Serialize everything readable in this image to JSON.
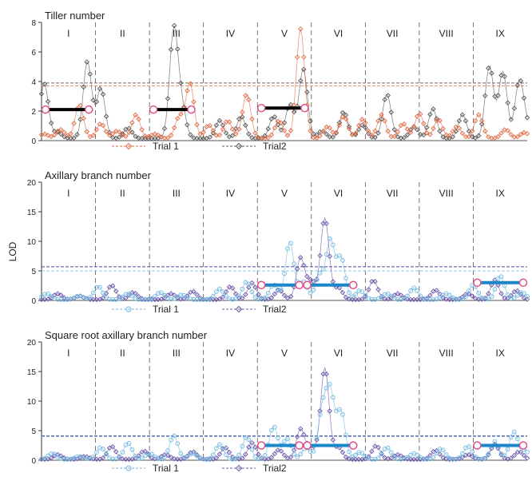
{
  "figure": {
    "ylabel": "LOD",
    "panels": [
      {
        "title": "Tiller number",
        "colors": {
          "trial1": "#e06a45",
          "trial2": "#555555",
          "threshold1": "#e8906e",
          "threshold2": "#8a6a55",
          "ci": "#000000"
        },
        "legend": [
          "Trial 1",
          "Trial2"
        ]
      },
      {
        "title": "Axillary branch number",
        "colors": {
          "trial1": "#6fb6e0",
          "trial2": "#6a55a8",
          "threshold1": "#8cc8ea",
          "threshold2": "#4a4aa0",
          "ci": "#1b86c8"
        },
        "legend": [
          "Trial 1",
          "Trial2"
        ]
      },
      {
        "title": "Square root axillary branch number",
        "colors": {
          "trial1": "#6fb6e0",
          "trial2": "#6a55a8",
          "threshold1": "#8cc8ea",
          "threshold2": "#4a4aa0",
          "ci": "#1b86c8"
        },
        "legend": [
          "Trial 1",
          "Trial2"
        ]
      }
    ]
  },
  "chart_data": [
    {
      "type": "line",
      "title": "Tiller number",
      "ylabel": "LOD",
      "ylim": [
        0,
        8
      ],
      "yticks": [
        "0",
        "2",
        "4",
        "6",
        "8"
      ],
      "chromosomes": [
        "I",
        "II",
        "III",
        "IV",
        "V",
        "VI",
        "VII",
        "VIII",
        "IX"
      ],
      "chromosome_bounds": [
        0,
        1,
        2,
        3,
        4,
        5,
        6,
        7,
        8,
        9
      ],
      "thresholds": [
        3.7,
        3.9
      ],
      "series": [
        {
          "name": "Trial 1",
          "marker": "diamond",
          "peaks": [
            [
              0.05,
              0.3
            ],
            [
              0.35,
              0.6
            ],
            [
              0.7,
              2.3
            ],
            [
              1.1,
              1.0
            ],
            [
              1.4,
              0.5
            ],
            [
              1.75,
              1.6
            ],
            [
              2.1,
              0.3
            ],
            [
              2.55,
              1.4
            ],
            [
              2.75,
              3.7
            ],
            [
              3.1,
              0.9
            ],
            [
              3.45,
              1.2
            ],
            [
              3.8,
              3.0
            ],
            [
              4.4,
              1.2
            ],
            [
              4.8,
              7.4
            ],
            [
              5.3,
              0.8
            ],
            [
              5.6,
              1.5
            ],
            [
              5.95,
              1.3
            ],
            [
              6.3,
              1.6
            ],
            [
              6.7,
              1.0
            ],
            [
              7.0,
              1.7
            ],
            [
              7.35,
              1.3
            ],
            [
              7.7,
              0.8
            ],
            [
              8.1,
              1.6
            ],
            [
              8.6,
              0.6
            ],
            [
              8.95,
              0.4
            ]
          ]
        },
        {
          "name": "Trial2",
          "marker": "diamond",
          "peaks": [
            [
              0.05,
              3.7
            ],
            [
              0.3,
              0.4
            ],
            [
              0.85,
              5.2
            ],
            [
              1.1,
              3.4
            ],
            [
              1.6,
              0.7
            ],
            [
              2.45,
              7.3
            ],
            [
              2.6,
              2.0
            ],
            [
              3.3,
              1.2
            ],
            [
              3.7,
              1.5
            ],
            [
              4.3,
              1.5
            ],
            [
              4.6,
              2.3
            ],
            [
              4.85,
              4.7
            ],
            [
              5.2,
              0.5
            ],
            [
              5.6,
              1.8
            ],
            [
              5.95,
              0.9
            ],
            [
              6.4,
              3.0
            ],
            [
              6.9,
              0.8
            ],
            [
              7.25,
              2.0
            ],
            [
              7.8,
              1.6
            ],
            [
              8.3,
              4.9
            ],
            [
              8.55,
              4.5
            ],
            [
              8.85,
              3.7
            ],
            [
              8.97,
              0.9
            ]
          ]
        }
      ],
      "ci_bars": [
        [
          0.0,
          0.95,
          2.1
        ],
        [
          2.0,
          2.85,
          2.1
        ],
        [
          4.0,
          4.95,
          2.2
        ]
      ],
      "ci_color": "#000000"
    },
    {
      "type": "line",
      "title": "Axillary branch number",
      "ylabel": "LOD",
      "ylim": [
        0,
        20
      ],
      "yticks": [
        "0",
        "5",
        "10",
        "15",
        "20"
      ],
      "chromosomes": [
        "I",
        "II",
        "III",
        "IV",
        "V",
        "VI",
        "VII",
        "VIII",
        "IX"
      ],
      "chromosome_bounds": [
        0,
        1,
        2,
        3,
        4,
        5,
        6,
        7,
        8,
        9
      ],
      "thresholds": [
        5.0,
        5.7
      ],
      "series": [
        {
          "name": "Trial 1",
          "marker": "circle",
          "peaks": [
            [
              0.1,
              1.0
            ],
            [
              0.7,
              0.6
            ],
            [
              1.05,
              2.2
            ],
            [
              1.6,
              1.0
            ],
            [
              2.2,
              1.2
            ],
            [
              2.6,
              0.8
            ],
            [
              3.3,
              1.8
            ],
            [
              3.8,
              3.0
            ],
            [
              4.3,
              2.5
            ],
            [
              4.6,
              9.8
            ],
            [
              4.85,
              3.0
            ],
            [
              5.15,
              4.0
            ],
            [
              5.35,
              10.0
            ],
            [
              5.55,
              7.0
            ],
            [
              5.9,
              1.5
            ],
            [
              6.4,
              1.0
            ],
            [
              6.9,
              2.0
            ],
            [
              7.5,
              1.0
            ],
            [
              8.0,
              2.5
            ],
            [
              8.5,
              4.0
            ],
            [
              8.9,
              1.2
            ]
          ]
        },
        {
          "name": "Trial2",
          "marker": "diamond",
          "peaks": [
            [
              0.3,
              1.0
            ],
            [
              0.7,
              0.6
            ],
            [
              1.3,
              2.4
            ],
            [
              1.7,
              1.2
            ],
            [
              2.4,
              1.0
            ],
            [
              2.8,
              1.4
            ],
            [
              3.5,
              2.2
            ],
            [
              3.9,
              2.8
            ],
            [
              4.4,
              1.6
            ],
            [
              4.8,
              7.0
            ],
            [
              5.0,
              3.0
            ],
            [
              5.25,
              13.8
            ],
            [
              5.5,
              2.0
            ],
            [
              6.15,
              3.3
            ],
            [
              6.6,
              1.0
            ],
            [
              7.3,
              1.6
            ],
            [
              7.9,
              1.0
            ],
            [
              8.4,
              3.3
            ],
            [
              8.8,
              1.5
            ]
          ]
        }
      ],
      "ci_bars": [
        [
          4.0,
          4.85,
          2.6
        ],
        [
          4.85,
          5.85,
          2.6
        ],
        [
          8.0,
          9.0,
          3.0
        ]
      ],
      "ci_color": "#1b86c8"
    },
    {
      "type": "line",
      "title": "Square root axillary branch number",
      "ylabel": "LOD",
      "ylim": [
        0,
        20
      ],
      "yticks": [
        "0",
        "5",
        "10",
        "15",
        "20"
      ],
      "chromosomes": [
        "I",
        "II",
        "III",
        "IV",
        "V",
        "VI",
        "VII",
        "VIII",
        "IX"
      ],
      "chromosome_bounds": [
        0,
        1,
        2,
        3,
        4,
        5,
        6,
        7,
        8,
        9
      ],
      "thresholds": [
        4.0,
        4.1
      ],
      "series": [
        {
          "name": "Trial 1",
          "marker": "circle",
          "peaks": [
            [
              0.2,
              1.0
            ],
            [
              0.7,
              0.5
            ],
            [
              1.1,
              2.0
            ],
            [
              1.6,
              2.8
            ],
            [
              2.0,
              1.0
            ],
            [
              2.45,
              4.0
            ],
            [
              2.8,
              1.0
            ],
            [
              3.3,
              2.5
            ],
            [
              3.8,
              3.8
            ],
            [
              4.3,
              5.6
            ],
            [
              4.55,
              3.5
            ],
            [
              4.9,
              2.0
            ],
            [
              5.2,
              8.0
            ],
            [
              5.35,
              11.0
            ],
            [
              5.55,
              8.0
            ],
            [
              5.9,
              1.2
            ],
            [
              6.4,
              2.0
            ],
            [
              6.9,
              1.0
            ],
            [
              7.4,
              1.8
            ],
            [
              7.9,
              2.2
            ],
            [
              8.4,
              3.0
            ],
            [
              8.75,
              4.6
            ],
            [
              8.95,
              1.5
            ]
          ]
        },
        {
          "name": "Trial2",
          "marker": "diamond",
          "peaks": [
            [
              0.3,
              0.8
            ],
            [
              0.8,
              0.5
            ],
            [
              1.3,
              2.2
            ],
            [
              1.9,
              1.4
            ],
            [
              2.3,
              0.8
            ],
            [
              2.8,
              1.3
            ],
            [
              3.4,
              2.0
            ],
            [
              3.9,
              2.8
            ],
            [
              4.4,
              1.6
            ],
            [
              4.8,
              5.1
            ],
            [
              5.0,
              2.0
            ],
            [
              5.25,
              15.5
            ],
            [
              5.5,
              2.0
            ],
            [
              6.2,
              2.3
            ],
            [
              6.6,
              0.8
            ],
            [
              7.3,
              1.5
            ],
            [
              7.9,
              0.8
            ],
            [
              8.4,
              2.5
            ],
            [
              8.85,
              1.3
            ]
          ]
        }
      ],
      "ci_bars": [
        [
          4.0,
          4.85,
          2.5
        ],
        [
          4.85,
          5.85,
          2.5
        ],
        [
          8.0,
          9.0,
          2.5
        ]
      ],
      "ci_color": "#1b86c8"
    }
  ]
}
